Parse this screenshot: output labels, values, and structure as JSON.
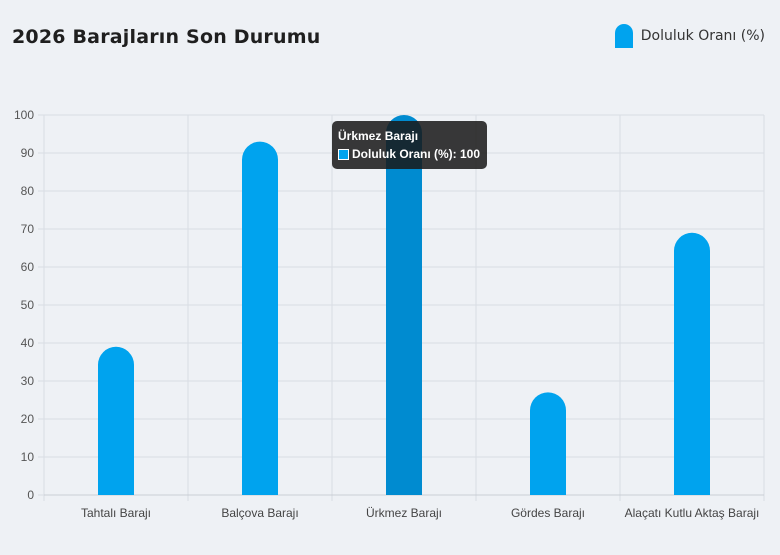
{
  "title": "2026 Barajların Son Durumu",
  "legend": {
    "label": "Doluluk Oranı (%)",
    "color": "#00a3ee"
  },
  "tooltip": {
    "title": "Ürkmez Barajı",
    "series_label": "Doluluk Oranı (%)",
    "value": 100,
    "text": "Doluluk Oranı (%): 100"
  },
  "colors": {
    "bar": "#00a3ee",
    "bar_hover": "#008bd0",
    "grid": "#d8dde3"
  },
  "chart_data": {
    "type": "bar",
    "title": "2026 Barajların Son Durumu",
    "categories": [
      "Tahtalı Barajı",
      "Balçova Barajı",
      "Ürkmez Barajı",
      "Gördes Barajı",
      "Alaçatı Kutlu Aktaş Barajı"
    ],
    "series": [
      {
        "name": "Doluluk Oranı (%)",
        "values": [
          39,
          93,
          100,
          27,
          69
        ]
      }
    ],
    "ylim": [
      0,
      100
    ],
    "yticks": [
      0,
      10,
      20,
      30,
      40,
      50,
      60,
      70,
      80,
      90,
      100
    ],
    "grid": true,
    "legend_position": "top-right",
    "highlighted_category": "Ürkmez Barajı"
  }
}
